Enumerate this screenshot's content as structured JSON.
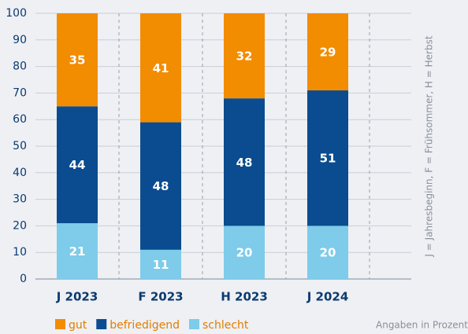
{
  "chart_data": {
    "type": "stacked_bar",
    "categories": [
      "J 2023",
      "F 2023",
      "H 2023",
      "J 2024"
    ],
    "series": [
      {
        "name": "schlecht",
        "color": "#7ecbea",
        "values": [
          21,
          11,
          20,
          20
        ]
      },
      {
        "name": "befriedigend",
        "color": "#0a4c8f",
        "values": [
          44,
          48,
          48,
          51
        ]
      },
      {
        "name": "gut",
        "color": "#f28c00",
        "values": [
          35,
          41,
          32,
          29
        ]
      }
    ],
    "legend_order": [
      2,
      1,
      0
    ],
    "ylim": [
      0,
      100
    ],
    "yticks": [
      0,
      10,
      20,
      30,
      40,
      50,
      60,
      70,
      80,
      90,
      100
    ],
    "grid": true,
    "annotations": [
      "J = Jahresbeginn, F = Frühsommer, H = Herbst",
      "Angaben in Prozent"
    ]
  }
}
